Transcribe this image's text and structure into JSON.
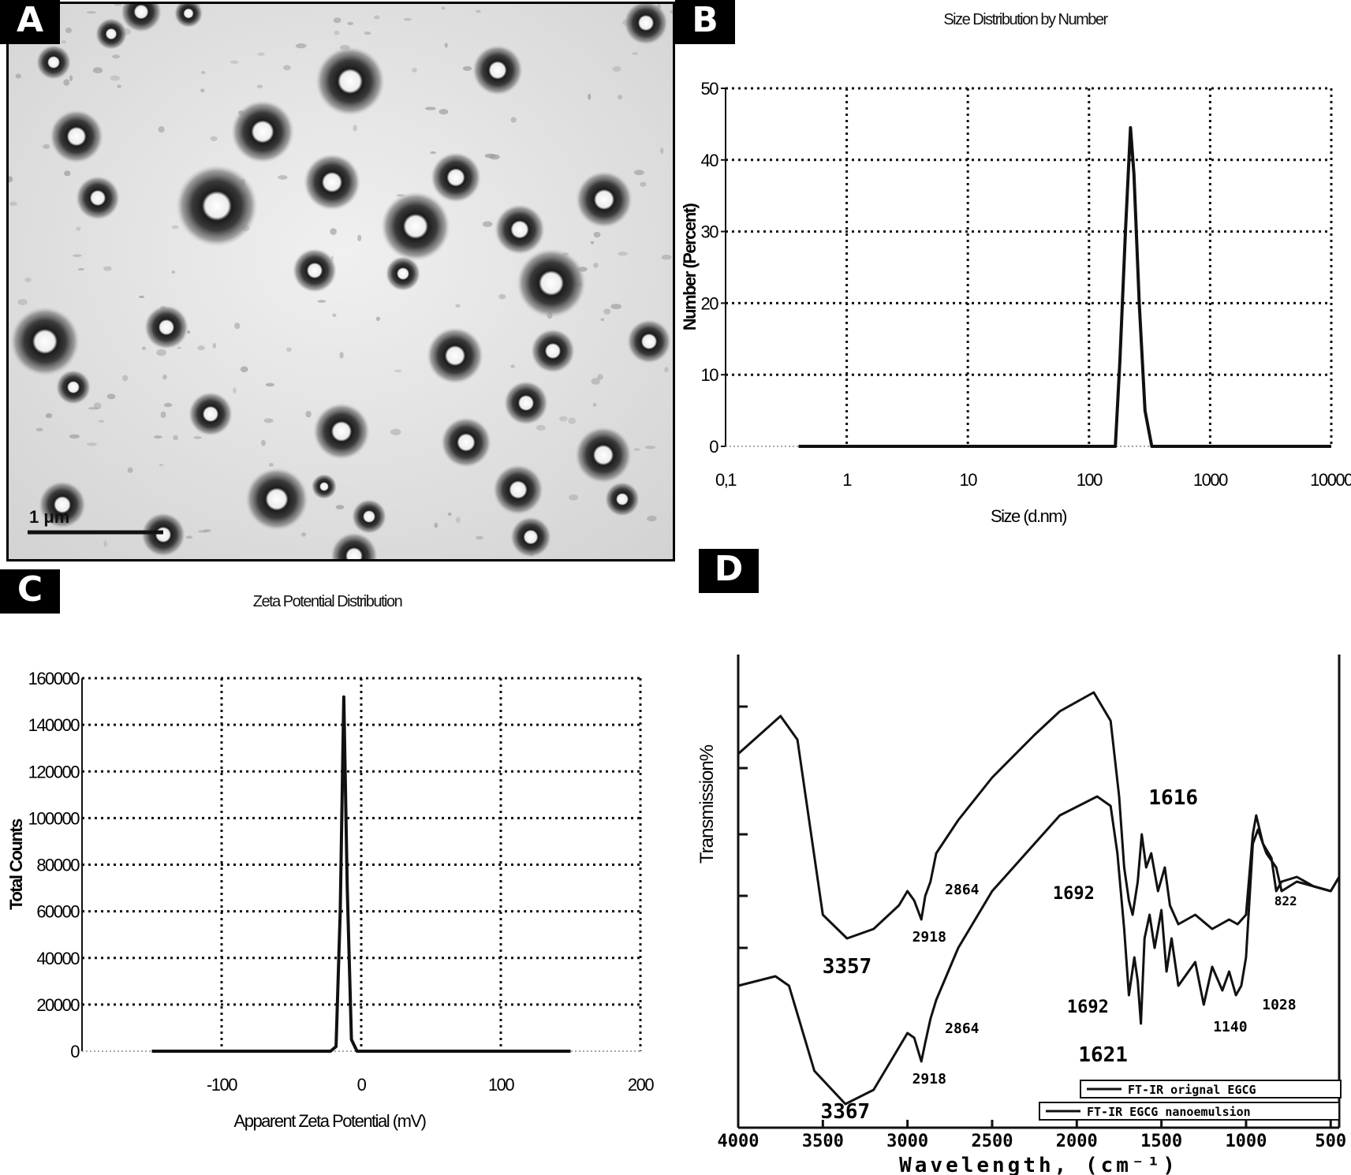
{
  "panels": {
    "A": {
      "letter": "A",
      "scale_bar_text": "1  μm"
    },
    "B": {
      "letter": "B"
    },
    "C": {
      "letter": "C"
    },
    "D": {
      "letter": "D"
    }
  },
  "chart_data": [
    {
      "panel": "B",
      "type": "line",
      "title": "Size Distribution by Number",
      "xlabel": "Size (d.nm)",
      "ylabel": "Number (Percent)",
      "xscale": "log",
      "xlim": [
        0.1,
        10000
      ],
      "ylim": [
        0,
        50
      ],
      "xticks": [
        0.1,
        1,
        10,
        100,
        1000,
        10000
      ],
      "xtick_labels": [
        "0,1",
        "1",
        "10",
        "100",
        "1000",
        "10000"
      ],
      "yticks": [
        0,
        10,
        20,
        30,
        40,
        50
      ],
      "grid": true,
      "series": [
        {
          "x": [
            0.4,
            100,
            165,
            180,
            200,
            220,
            235,
            260,
            290,
            330,
            10000
          ],
          "y": [
            0,
            0,
            0,
            12,
            30,
            44.5,
            38,
            20,
            5,
            0,
            0
          ]
        }
      ]
    },
    {
      "panel": "C",
      "type": "line",
      "title": "Zeta Potential Distribution",
      "xlabel": "Apparent Zeta Potential (mV)",
      "ylabel": "Total Counts",
      "xlim": [
        -200,
        200
      ],
      "ylim": [
        0,
        160000
      ],
      "xticks": [
        -100,
        0,
        100,
        200
      ],
      "xtick_labels": [
        "-100",
        "0",
        "100",
        "200"
      ],
      "yticks": [
        0,
        20000,
        40000,
        60000,
        80000,
        100000,
        120000,
        140000,
        160000
      ],
      "ytick_labels": [
        "0",
        "20000",
        "40000",
        "60000",
        "80000",
        "100000",
        "120000",
        "140000",
        "160000"
      ],
      "grid": true,
      "series": [
        {
          "x": [
            -150,
            -22,
            -18,
            -15,
            -12.5,
            -10,
            -7,
            -3,
            150
          ],
          "y": [
            0,
            0,
            2000,
            60000,
            152000,
            70000,
            5000,
            0,
            0
          ]
        }
      ]
    },
    {
      "panel": "D",
      "type": "line",
      "title": "",
      "xlabel": "Wavelength, (cm⁻¹)",
      "ylabel": "Transmission%",
      "xlim": [
        4000,
        450
      ],
      "xticks": [
        4000,
        3500,
        3000,
        2500,
        2000,
        1500,
        1000,
        500
      ],
      "xtick_labels": [
        "4000",
        "3500",
        "3000",
        "2500",
        "2000",
        "1500",
        "1000",
        "500"
      ],
      "ylim": [
        0,
        100
      ],
      "grid": false,
      "legend": {
        "position": "bottom-right"
      },
      "series": [
        {
          "name": "FT-IR orignal EGCG",
          "x": [
            4000,
            3750,
            3650,
            3500,
            3357,
            3200,
            3050,
            3000,
            2960,
            2918,
            2895,
            2864,
            2830,
            2700,
            2500,
            2250,
            2100,
            1900,
            1800,
            1750,
            1720,
            1692,
            1670,
            1640,
            1616,
            1590,
            1560,
            1520,
            1480,
            1450,
            1400,
            1300,
            1200,
            1100,
            1050,
            1000,
            960,
            940,
            900,
            850,
            822,
            790,
            700,
            600,
            500,
            450
          ],
          "y": [
            79,
            87,
            82,
            45,
            40,
            42,
            47,
            50,
            48,
            44,
            49,
            52,
            58,
            65,
            74,
            83,
            88,
            92,
            86,
            70,
            55,
            48,
            45,
            52,
            62,
            55,
            58,
            50,
            55,
            47,
            43,
            45,
            42,
            44,
            43,
            45,
            62,
            66,
            60,
            57,
            50,
            52,
            53,
            51,
            50,
            53
          ]
        },
        {
          "name": "FT-IR EGCG nanoemulsion",
          "x": [
            4000,
            3780,
            3700,
            3550,
            3367,
            3200,
            3050,
            3000,
            2960,
            2918,
            2895,
            2864,
            2830,
            2700,
            2500,
            2250,
            2100,
            1880,
            1800,
            1760,
            1720,
            1692,
            1660,
            1640,
            1621,
            1600,
            1570,
            1540,
            1500,
            1470,
            1440,
            1400,
            1300,
            1250,
            1200,
            1140,
            1100,
            1060,
            1028,
            1000,
            960,
            930,
            880,
            822,
            790,
            700,
            600,
            500,
            450
          ],
          "y": [
            30,
            32,
            30,
            12,
            5,
            8,
            17,
            20,
            19,
            14,
            18,
            23,
            27,
            38,
            50,
            60,
            66,
            70,
            68,
            58,
            42,
            28,
            36,
            31,
            22,
            40,
            45,
            38,
            46,
            33,
            40,
            30,
            35,
            26,
            34,
            29,
            33,
            28,
            30,
            36,
            60,
            63,
            58,
            55,
            50,
            52,
            51,
            50,
            53
          ]
        }
      ],
      "annotations": [
        "3357",
        "2918",
        "2864",
        "1692",
        "1616",
        "822",
        "3367",
        "2918",
        "2864",
        "1692",
        "1621",
        "1140",
        "1028"
      ]
    }
  ]
}
